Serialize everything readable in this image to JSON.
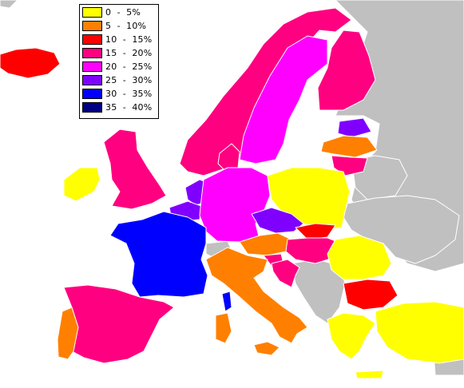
{
  "legend": {
    "items": [
      {
        "label": "0  -  5%",
        "color": "#ffff00"
      },
      {
        "label": "5  -  10%",
        "color": "#ff8000"
      },
      {
        "label": "10  -  15%",
        "color": "#ff0000"
      },
      {
        "label": "15  -  20%",
        "color": "#ff0080"
      },
      {
        "label": "20  -  25%",
        "color": "#ff00ff"
      },
      {
        "label": "25  -  30%",
        "color": "#8000ff"
      },
      {
        "label": "30  -  35%",
        "color": "#0000ff"
      },
      {
        "label": "35  -  40%",
        "color": "#000080"
      }
    ]
  },
  "colors": {
    "no_data": "#c0c0c0",
    "background": "#ffffff",
    "border": "#ffffff"
  }
}
